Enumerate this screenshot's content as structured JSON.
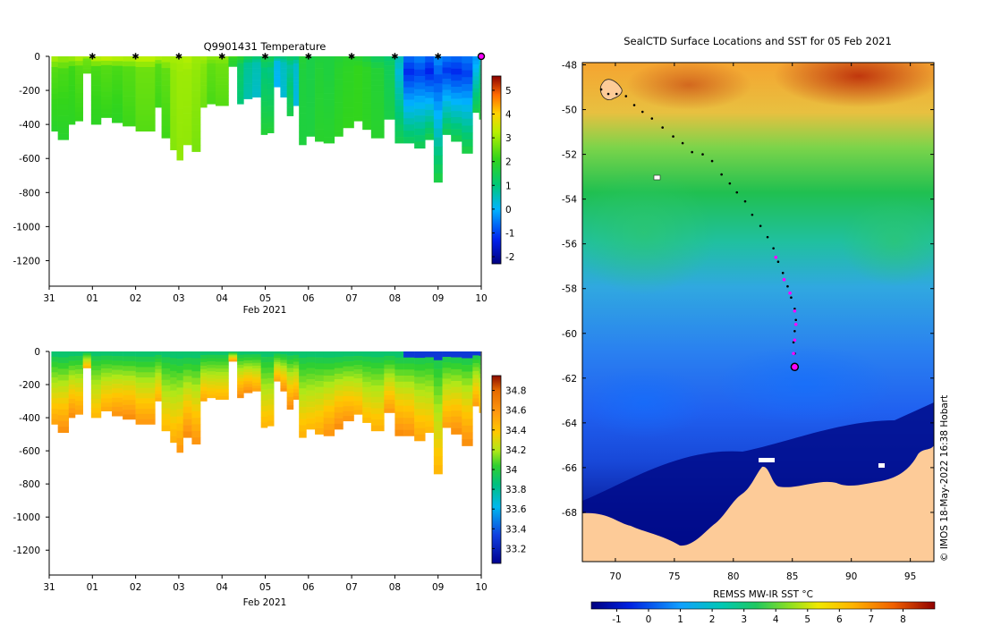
{
  "chart_data": [
    {
      "type": "heatmap",
      "name": "temperature-section",
      "title": "Q9901431  Temperature",
      "xlabel": "Feb 2021",
      "ylabel": "",
      "x_tick_labels": [
        "31",
        "01",
        "02",
        "03",
        "04",
        "05",
        "06",
        "07",
        "08",
        "09",
        "10"
      ],
      "x_day_range": [
        0,
        10
      ],
      "y_ticks": [
        0,
        -200,
        -400,
        -600,
        -800,
        -1000,
        -1200
      ],
      "y_tick_labels": [
        "0",
        "-200",
        "-400",
        "-600",
        "-800",
        "-1000",
        "-1200"
      ],
      "ylim": [
        -1350,
        0
      ],
      "colorbar": {
        "min": -2.3,
        "max": 5.6,
        "ticks": [
          5,
          4,
          3,
          2,
          1,
          0,
          -1,
          -2
        ],
        "tick_labels": [
          "5",
          "4",
          "3",
          "2",
          "1",
          "0",
          "-1",
          "-2"
        ]
      },
      "surface_markers_days": [
        1,
        2,
        3,
        4,
        5,
        6,
        7,
        8,
        9
      ],
      "marker_color": "#ff00ff",
      "last_position_day": 10,
      "profiles": [
        {
          "day": 0.05,
          "depth": 440,
          "surf": 3.2,
          "mid": 2.4,
          "deep": 1.9
        },
        {
          "day": 0.2,
          "depth": 490,
          "surf": 3.0,
          "mid": 2.3,
          "deep": 1.9
        },
        {
          "day": 0.45,
          "depth": 400,
          "surf": 3.1,
          "mid": 2.2,
          "deep": 2.0
        },
        {
          "day": 0.6,
          "depth": 380,
          "surf": 3.3,
          "mid": 2.4,
          "deep": 2.1
        },
        {
          "day": 0.78,
          "depth": 100,
          "surf": 3.2,
          "mid": 2.6,
          "deep": 2.4
        },
        {
          "day": 0.97,
          "depth": 400,
          "surf": 3.4,
          "mid": 2.3,
          "deep": 2.0
        },
        {
          "day": 1.2,
          "depth": 360,
          "surf": 3.5,
          "mid": 2.4,
          "deep": 2.1
        },
        {
          "day": 1.45,
          "depth": 390,
          "surf": 3.4,
          "mid": 2.3,
          "deep": 2.0
        },
        {
          "day": 1.7,
          "depth": 410,
          "surf": 3.3,
          "mid": 2.4,
          "deep": 2.2
        },
        {
          "day": 2.0,
          "depth": 440,
          "surf": 3.4,
          "mid": 2.6,
          "deep": 2.4
        },
        {
          "day": 2.45,
          "depth": 300,
          "surf": 3.3,
          "mid": 2.4,
          "deep": 2.2
        },
        {
          "day": 2.6,
          "depth": 480,
          "surf": 3.2,
          "mid": 2.5,
          "deep": 2.2
        },
        {
          "day": 2.8,
          "depth": 550,
          "surf": 3.1,
          "mid": 2.9,
          "deep": 2.8
        },
        {
          "day": 2.95,
          "depth": 610,
          "surf": 3.1,
          "mid": 3.0,
          "deep": 2.9
        },
        {
          "day": 3.1,
          "depth": 520,
          "surf": 3.2,
          "mid": 3.0,
          "deep": 2.9
        },
        {
          "day": 3.3,
          "depth": 560,
          "surf": 3.0,
          "mid": 2.9,
          "deep": 2.7
        },
        {
          "day": 3.5,
          "depth": 300,
          "surf": 3.1,
          "mid": 2.8,
          "deep": 2.6
        },
        {
          "day": 3.65,
          "depth": 280,
          "surf": 2.9,
          "mid": 2.5,
          "deep": 2.3
        },
        {
          "day": 3.85,
          "depth": 290,
          "surf": 2.9,
          "mid": 2.6,
          "deep": 2.4
        },
        {
          "day": 4.15,
          "depth": 60,
          "surf": 2.4,
          "mid": 2.0,
          "deep": 1.8
        },
        {
          "day": 4.35,
          "depth": 280,
          "surf": 2.0,
          "mid": 1.3,
          "deep": 1.0
        },
        {
          "day": 4.5,
          "depth": 250,
          "surf": 1.5,
          "mid": 0.8,
          "deep": 0.6
        },
        {
          "day": 4.7,
          "depth": 240,
          "surf": 1.2,
          "mid": 0.6,
          "deep": 0.4
        },
        {
          "day": 4.9,
          "depth": 460,
          "surf": 1.6,
          "mid": 1.0,
          "deep": 1.8
        },
        {
          "day": 5.05,
          "depth": 450,
          "surf": 1.5,
          "mid": 0.9,
          "deep": 1.8
        },
        {
          "day": 5.2,
          "depth": 180,
          "surf": 1.2,
          "mid": 0.2,
          "deep": 0.0
        },
        {
          "day": 5.35,
          "depth": 240,
          "surf": 1.1,
          "mid": 0.5,
          "deep": 0.3
        },
        {
          "day": 5.5,
          "depth": 350,
          "surf": 1.3,
          "mid": 0.7,
          "deep": 1.6
        },
        {
          "day": 5.65,
          "depth": 290,
          "surf": 1.2,
          "mid": 0.4,
          "deep": 0.2
        },
        {
          "day": 5.78,
          "depth": 520,
          "surf": 1.8,
          "mid": 1.7,
          "deep": 1.7
        },
        {
          "day": 5.95,
          "depth": 470,
          "surf": 1.6,
          "mid": 1.6,
          "deep": 1.7
        },
        {
          "day": 6.15,
          "depth": 500,
          "surf": 1.7,
          "mid": 1.8,
          "deep": 1.9
        },
        {
          "day": 6.35,
          "depth": 510,
          "surf": 1.7,
          "mid": 1.7,
          "deep": 1.9
        },
        {
          "day": 6.6,
          "depth": 470,
          "surf": 1.8,
          "mid": 1.9,
          "deep": 2.0
        },
        {
          "day": 6.8,
          "depth": 420,
          "surf": 1.9,
          "mid": 2.0,
          "deep": 2.1
        },
        {
          "day": 7.05,
          "depth": 380,
          "surf": 1.8,
          "mid": 2.1,
          "deep": 2.1
        },
        {
          "day": 7.25,
          "depth": 430,
          "surf": 1.6,
          "mid": 2.0,
          "deep": 2.0
        },
        {
          "day": 7.45,
          "depth": 480,
          "surf": 1.3,
          "mid": 1.8,
          "deep": 1.9
        },
        {
          "day": 7.75,
          "depth": 370,
          "surf": 1.1,
          "mid": 1.4,
          "deep": 1.6
        },
        {
          "day": 8.0,
          "depth": 510,
          "surf": 0.6,
          "mid": 0.3,
          "deep": 1.5
        },
        {
          "day": 8.2,
          "depth": 510,
          "surf": -0.6,
          "mid": -1.2,
          "deep": 1.4
        },
        {
          "day": 8.45,
          "depth": 540,
          "surf": -0.4,
          "mid": -1.0,
          "deep": 1.5
        },
        {
          "day": 8.7,
          "depth": 490,
          "surf": -0.7,
          "mid": -1.3,
          "deep": 1.6
        },
        {
          "day": 8.9,
          "depth": 740,
          "surf": -0.3,
          "mid": -0.9,
          "deep": 1.7
        },
        {
          "day": 9.1,
          "depth": 460,
          "surf": -0.5,
          "mid": -1.1,
          "deep": 1.5
        },
        {
          "day": 9.3,
          "depth": 500,
          "surf": -0.6,
          "mid": -1.2,
          "deep": 1.6
        },
        {
          "day": 9.55,
          "depth": 570,
          "surf": -0.5,
          "mid": -1.0,
          "deep": 1.7
        },
        {
          "day": 9.8,
          "depth": 330,
          "surf": -0.3,
          "mid": 0.0,
          "deep": 1.6
        },
        {
          "day": 9.95,
          "depth": 370,
          "surf": 0.0,
          "mid": 0.8,
          "deep": 1.8
        }
      ]
    },
    {
      "type": "heatmap",
      "name": "salinity-section",
      "title": "",
      "xlabel": "Feb 2021",
      "x_tick_labels": [
        "31",
        "01",
        "02",
        "03",
        "04",
        "05",
        "06",
        "07",
        "08",
        "09",
        "10"
      ],
      "x_day_range": [
        0,
        10
      ],
      "y_ticks": [
        0,
        -200,
        -400,
        -600,
        -800,
        -1000,
        -1200
      ],
      "y_tick_labels": [
        "0",
        "-200",
        "-400",
        "-600",
        "-800",
        "-1000",
        "-1200"
      ],
      "ylim": [
        -1350,
        0
      ],
      "colorbar": {
        "min": 33.05,
        "max": 34.95,
        "ticks": [
          34.8,
          34.6,
          34.4,
          34.2,
          34,
          33.8,
          33.6,
          33.4,
          33.2
        ],
        "tick_labels": [
          "34.8",
          "34.6",
          "34.4",
          "34.2",
          "34",
          "33.8",
          "33.6",
          "33.4",
          "33.2"
        ]
      }
    },
    {
      "type": "heatmap",
      "name": "sst-map",
      "title": "SealCTD Surface Locations and SST for 05 Feb 2021",
      "xlabel": "",
      "x_ticks": [
        70,
        75,
        80,
        85,
        90,
        95
      ],
      "x_tick_labels": [
        "70",
        "75",
        "80",
        "85",
        "90",
        "95"
      ],
      "xlim": [
        67.2,
        97.0
      ],
      "y_ticks": [
        -48,
        -50,
        -52,
        -54,
        -56,
        -58,
        -60,
        -62,
        -64,
        -66,
        -68
      ],
      "y_tick_labels": [
        "-48",
        "-50",
        "-52",
        "-54",
        "-56",
        "-58",
        "-60",
        "-62",
        "-64",
        "-66",
        "-68"
      ],
      "ylim": [
        -70.2,
        -47.9
      ],
      "colorbar": {
        "label": "REMSS MW-IR SST °C",
        "min": -1.8,
        "max": 9.0,
        "ticks": [
          -1,
          0,
          1,
          2,
          3,
          4,
          5,
          6,
          7,
          8
        ],
        "tick_labels": [
          "-1",
          "0",
          "1",
          "2",
          "3",
          "4",
          "5",
          "6",
          "7",
          "8"
        ]
      },
      "credit": "© IMOS 18-May-2022 16:38 Hobart",
      "land_color": "#fdcb98",
      "track": [
        [
          68.8,
          -49.1
        ],
        [
          69.4,
          -49.3
        ],
        [
          70.1,
          -49.3
        ],
        [
          70.9,
          -49.4
        ],
        [
          71.6,
          -49.8
        ],
        [
          72.3,
          -50.1
        ],
        [
          73.1,
          -50.4
        ],
        [
          74.0,
          -50.8
        ],
        [
          74.9,
          -51.2
        ],
        [
          75.7,
          -51.5
        ],
        [
          76.5,
          -51.9
        ],
        [
          77.4,
          -52.0
        ],
        [
          78.2,
          -52.3
        ],
        [
          79.0,
          -52.9
        ],
        [
          79.7,
          -53.3
        ],
        [
          80.3,
          -53.7
        ],
        [
          81.0,
          -54.1
        ],
        [
          81.6,
          -54.7
        ],
        [
          82.3,
          -55.2
        ],
        [
          82.9,
          -55.7
        ],
        [
          83.4,
          -56.2
        ],
        [
          83.8,
          -56.8
        ],
        [
          84.2,
          -57.3
        ],
        [
          84.6,
          -57.9
        ],
        [
          84.9,
          -58.4
        ],
        [
          85.2,
          -58.9
        ],
        [
          85.3,
          -59.4
        ],
        [
          85.2,
          -59.9
        ],
        [
          85.1,
          -60.4
        ],
        [
          85.2,
          -60.9
        ],
        [
          85.2,
          -61.5
        ]
      ],
      "track_markers": [
        [
          83.6,
          -56.6
        ],
        [
          84.3,
          -57.6
        ],
        [
          84.8,
          -58.2
        ],
        [
          85.2,
          -59.0
        ],
        [
          85.3,
          -59.6
        ],
        [
          85.2,
          -60.3
        ],
        [
          85.1,
          -60.9
        ]
      ],
      "last_position": [
        85.2,
        -61.5
      ]
    }
  ]
}
